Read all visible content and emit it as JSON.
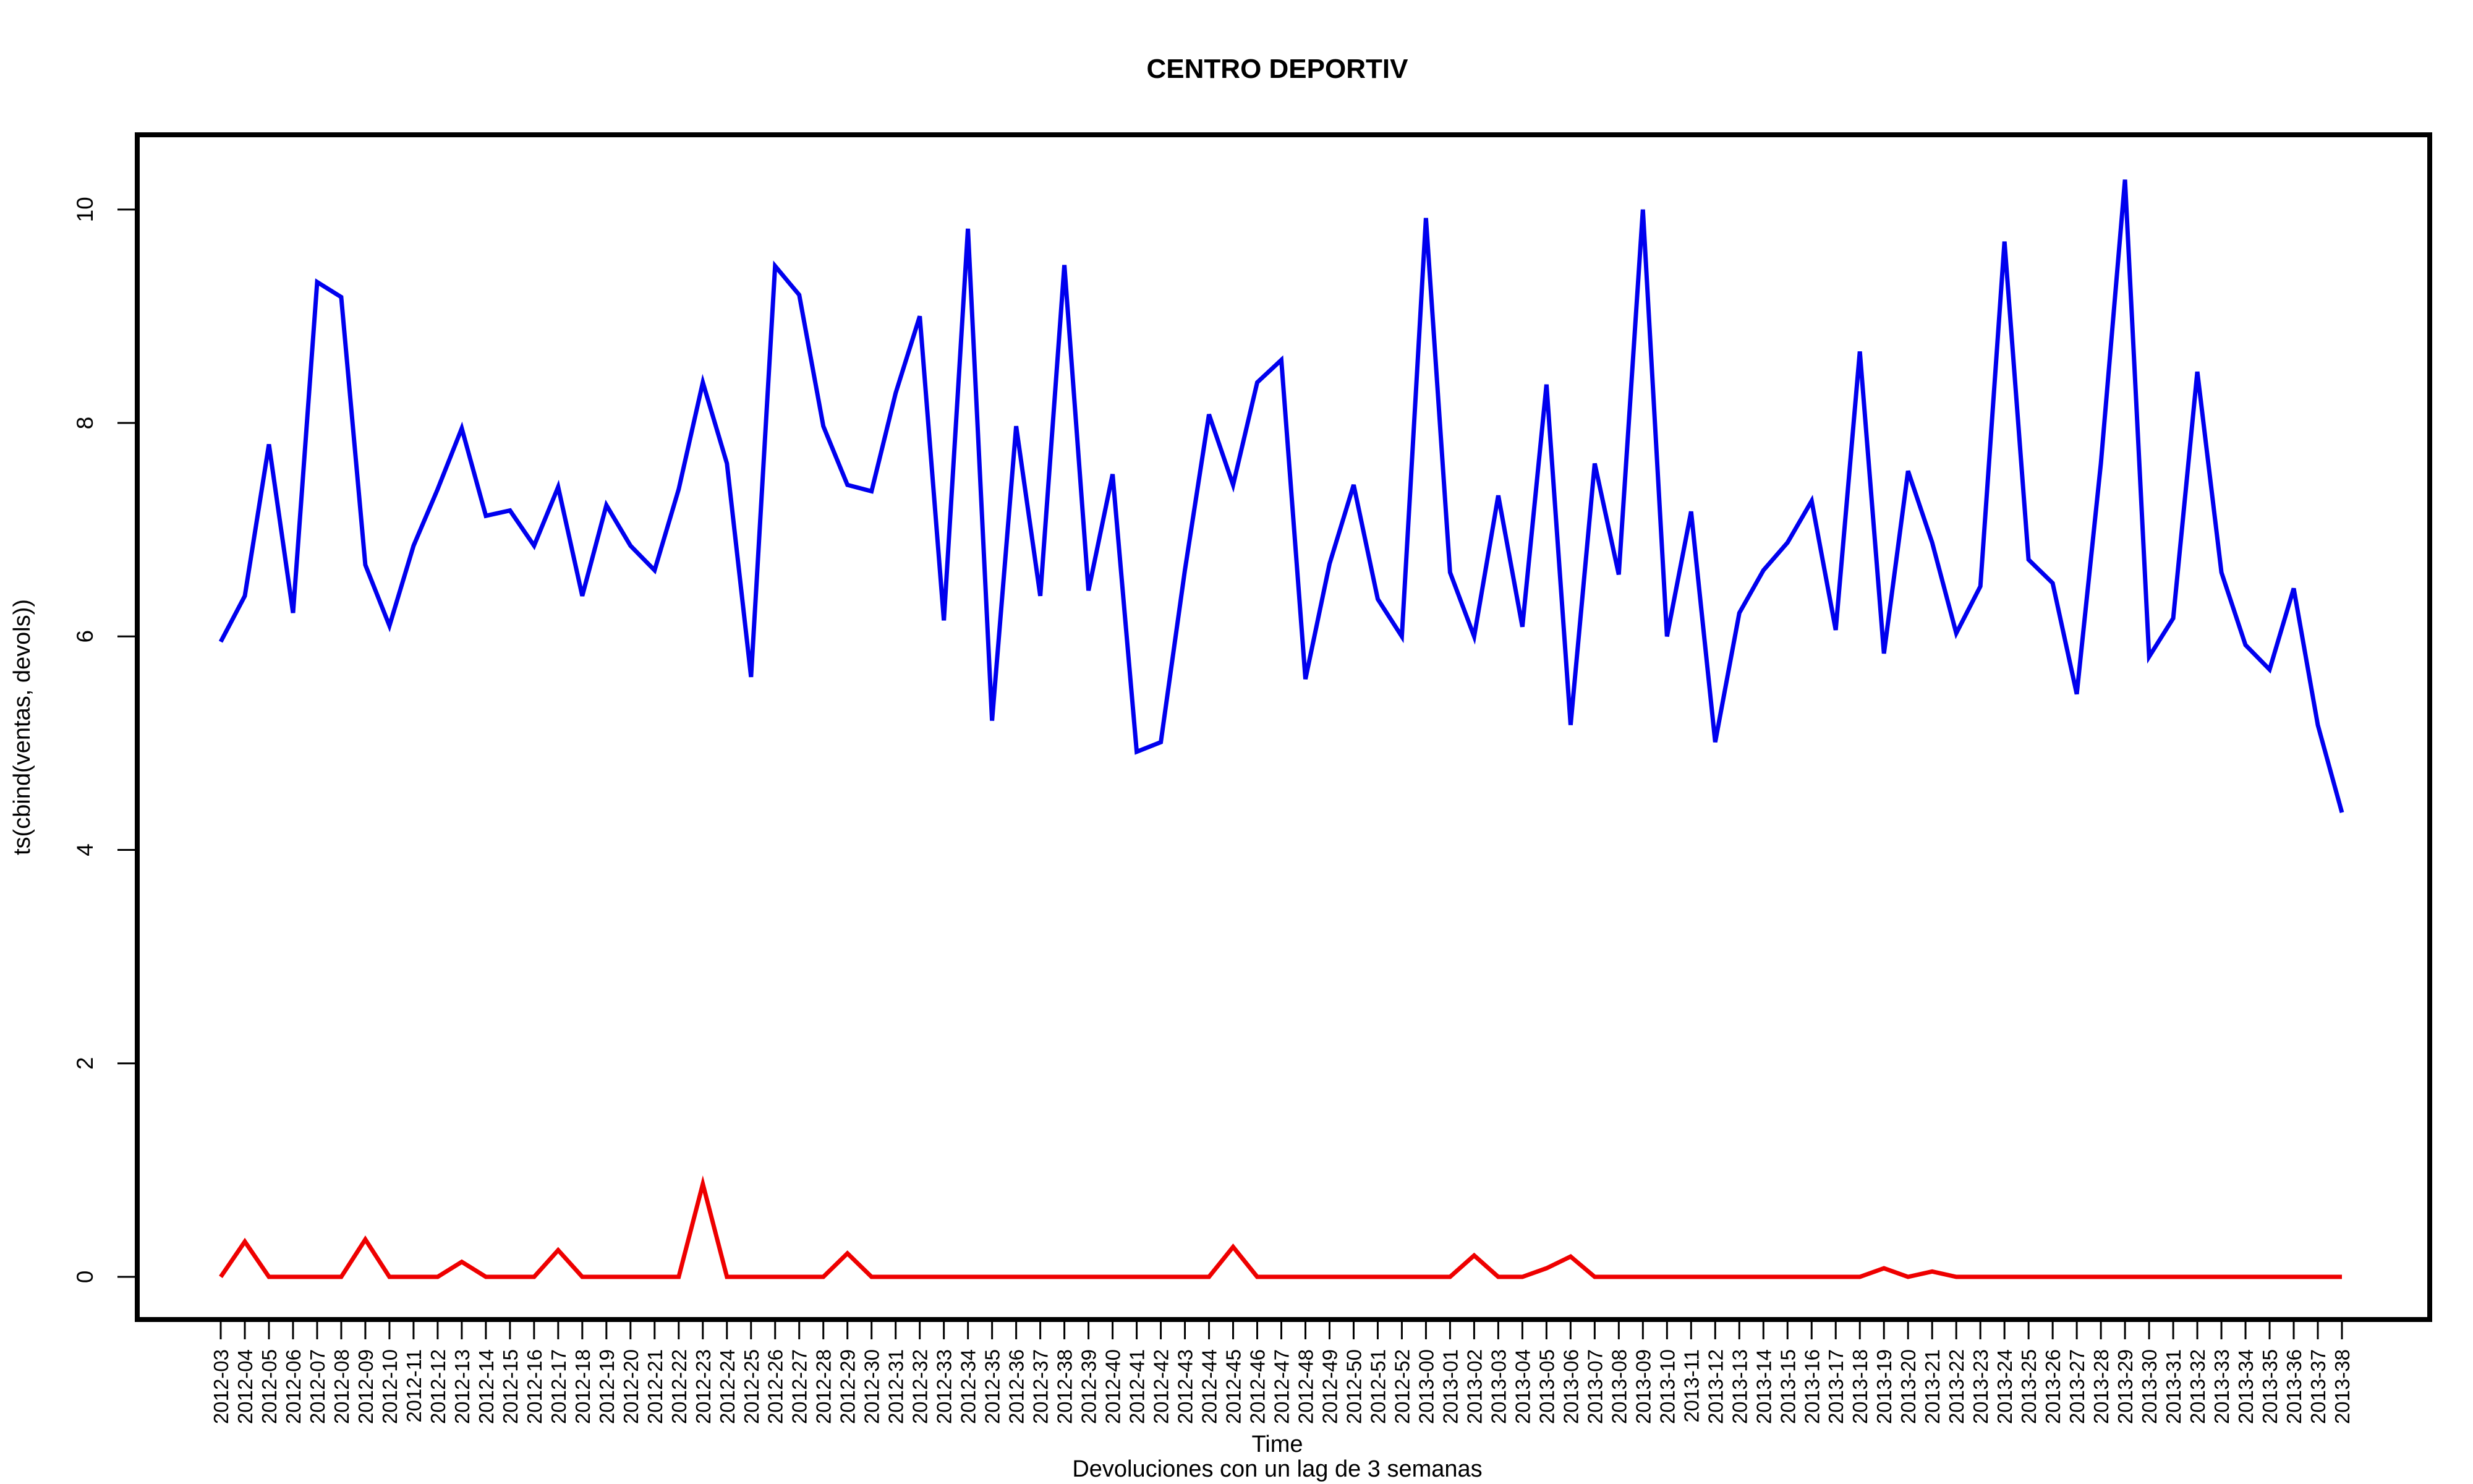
{
  "chart_data": {
    "type": "line",
    "title": "CENTRO DEPORTIV",
    "subtitle": "Devoluciones con un lag de 3 semanas",
    "xlabel": "Time",
    "ylabel": "ts(cbind(ventas, devols))",
    "ylim": [
      -0.4,
      10.7
    ],
    "yticks": [
      0,
      2,
      4,
      6,
      8,
      10
    ],
    "grid": false,
    "legend": "none",
    "categories": [
      "2012-03",
      "2012-04",
      "2012-05",
      "2012-06",
      "2012-07",
      "2012-08",
      "2012-09",
      "2012-10",
      "2012-11",
      "2012-12",
      "2012-13",
      "2012-14",
      "2012-15",
      "2012-16",
      "2012-17",
      "2012-18",
      "2012-19",
      "2012-20",
      "2012-21",
      "2012-22",
      "2012-23",
      "2012-24",
      "2012-25",
      "2012-26",
      "2012-27",
      "2012-28",
      "2012-29",
      "2012-30",
      "2012-31",
      "2012-32",
      "2012-33",
      "2012-34",
      "2012-35",
      "2012-36",
      "2012-37",
      "2012-38",
      "2012-39",
      "2012-40",
      "2012-41",
      "2012-42",
      "2012-43",
      "2012-44",
      "2012-45",
      "2012-46",
      "2012-47",
      "2012-48",
      "2012-49",
      "2012-50",
      "2012-51",
      "2012-52",
      "2013-00",
      "2013-01",
      "2013-02",
      "2013-03",
      "2013-04",
      "2013-05",
      "2013-06",
      "2013-07",
      "2013-08",
      "2013-09",
      "2013-10",
      "2013-11",
      "2013-12",
      "2013-13",
      "2013-14",
      "2013-15",
      "2013-16",
      "2013-17",
      "2013-18",
      "2013-19",
      "2013-20",
      "2013-21",
      "2013-22",
      "2013-23",
      "2013-24",
      "2013-25",
      "2013-26",
      "2013-27",
      "2013-28",
      "2013-29",
      "2013-30",
      "2013-31",
      "2013-32",
      "2013-33",
      "2013-34",
      "2013-35",
      "2013-36",
      "2013-37",
      "2013-38"
    ],
    "series": [
      {
        "color": "#0000ee",
        "values": [
          5.95,
          6.38,
          7.8,
          6.22,
          9.32,
          9.18,
          6.67,
          6.1,
          6.85,
          7.38,
          7.95,
          7.13,
          7.18,
          6.85,
          7.4,
          6.38,
          7.23,
          6.85,
          6.62,
          7.38,
          8.38,
          7.62,
          5.62,
          9.47,
          9.2,
          7.97,
          7.42,
          7.36,
          8.28,
          9.0,
          6.15,
          9.82,
          5.21,
          7.97,
          6.38,
          9.48,
          6.43,
          7.52,
          4.92,
          5.01,
          6.62,
          8.08,
          7.42,
          8.38,
          8.59,
          5.6,
          6.68,
          7.42,
          6.35,
          6.0,
          9.92,
          6.6,
          6.0,
          7.32,
          6.09,
          8.36,
          5.17,
          7.62,
          6.58,
          10.0,
          6.0,
          7.17,
          5.01,
          6.22,
          6.62,
          6.88,
          7.27,
          6.06,
          8.67,
          5.84,
          7.55,
          6.88,
          6.03,
          6.47,
          9.7,
          6.72,
          6.5,
          5.46,
          7.62,
          10.28,
          5.81,
          6.17,
          8.48,
          6.6,
          5.92,
          5.69,
          6.45,
          5.17,
          4.35
        ]
      },
      {
        "color": "#ee0000",
        "values": [
          0,
          0.33,
          0,
          0,
          0,
          0,
          0.35,
          0,
          0,
          0,
          0.14,
          0,
          0,
          0,
          0.25,
          0,
          0,
          0,
          0,
          0,
          0.87,
          0,
          0,
          0,
          0,
          0,
          0.22,
          0,
          0,
          0,
          0,
          0,
          0,
          0,
          0,
          0,
          0,
          0,
          0,
          0,
          0,
          0,
          0.28,
          0,
          0,
          0,
          0,
          0,
          0,
          0,
          0,
          0,
          0.2,
          0,
          0,
          0.08,
          0.19,
          0,
          0,
          0,
          0,
          0,
          0,
          0,
          0,
          0,
          0,
          0,
          0,
          0.08,
          0,
          0.05,
          0,
          0,
          0,
          0,
          0,
          0,
          0,
          0,
          0,
          0,
          0,
          0,
          0,
          0,
          0,
          0,
          0
        ]
      }
    ]
  }
}
